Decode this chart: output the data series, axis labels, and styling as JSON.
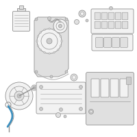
{
  "background_color": "#ffffff",
  "line_color": "#b0b0b0",
  "dark_line": "#909090",
  "med_line": "#a0a0a0",
  "accent_color": "#3a8fbf",
  "fill_light": "#f2f2f2",
  "fill_mid": "#e0e0e0",
  "fill_dark": "#cccccc",
  "fig_width": 2.0,
  "fig_height": 2.0,
  "dpi": 100
}
